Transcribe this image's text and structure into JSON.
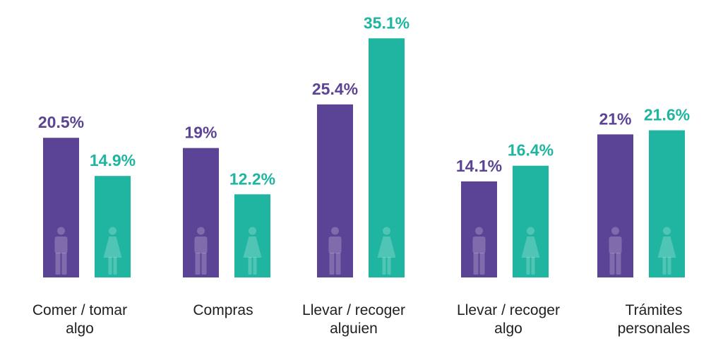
{
  "chart_data": {
    "type": "bar",
    "title": "",
    "xlabel": "",
    "ylabel": "",
    "ylim": [
      0,
      36
    ],
    "grid": false,
    "legend": "none",
    "categories": [
      [
        "Comer / tomar",
        "algo"
      ],
      [
        "Compras"
      ],
      [
        "Llevar / recoger",
        "alguien"
      ],
      [
        "Llevar / recoger",
        "algo"
      ],
      [
        "Trámites",
        "personales"
      ]
    ],
    "series": [
      {
        "values": [
          20.5,
          19,
          25.4,
          14.1,
          21
        ],
        "labels": [
          "20.5%",
          "19%",
          "25.4%",
          "14.1%",
          "21%"
        ],
        "color": "#5b4396",
        "label_color": "#5b4396",
        "icon": "man-icon"
      },
      {
        "values": [
          14.9,
          12.2,
          35.1,
          16.4,
          21.6
        ],
        "labels": [
          "14.9%",
          "12.2%",
          "35.1%",
          "16.4%",
          "21.6%"
        ],
        "color": "#1fb5a0",
        "label_color": "#1fb5a0",
        "icon": "woman-icon"
      }
    ]
  }
}
